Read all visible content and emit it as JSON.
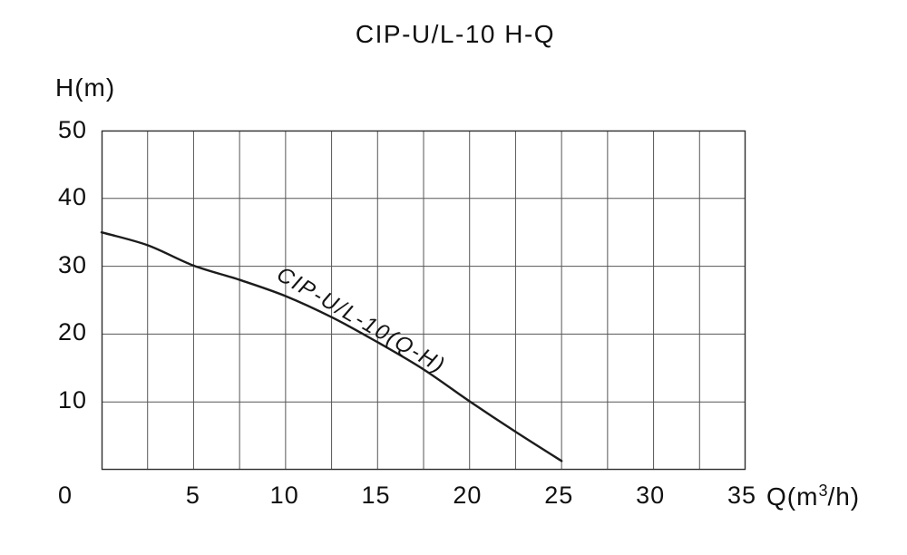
{
  "page": {
    "background": "#ffffff"
  },
  "chart_data": {
    "type": "line",
    "title": "CIP-U/L-10 H-Q",
    "xlabel": "Q(m³/h)",
    "xlabel_parts": {
      "pre": "Q(m",
      "sup": "3",
      "post": "/h)"
    },
    "ylabel": "H(m)",
    "xlim": [
      0,
      35
    ],
    "ylim": [
      0,
      50
    ],
    "x_ticks": [
      0,
      5,
      10,
      15,
      20,
      25,
      30,
      35
    ],
    "y_ticks": [
      50,
      40,
      30,
      20,
      10
    ],
    "x_grid_step": 2.5,
    "y_grid_step": 10,
    "grid": true,
    "legend_position": "on-curve",
    "series": [
      {
        "name": "CIP-U/L-10(Q-H)",
        "x": [
          0,
          2.5,
          5,
          7.5,
          10,
          12.5,
          15,
          17.5,
          20,
          22.5,
          25
        ],
        "y": [
          35,
          33.1,
          30.1,
          28.0,
          25.6,
          22.5,
          18.8,
          14.8,
          10.1,
          5.6,
          1.3
        ]
      }
    ],
    "colors": {
      "curve": "#1c1c1c",
      "grid": "#565656",
      "border": "#2e2e2e",
      "text": "#111111"
    }
  }
}
